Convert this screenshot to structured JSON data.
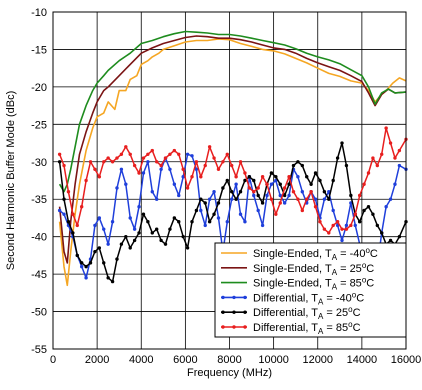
{
  "chart_data": {
    "type": "line",
    "title": "",
    "xlabel": "Frequency (MHz)",
    "ylabel": "Second Harmonic Buffer Mode (dBc)",
    "xlim": [
      0,
      16000
    ],
    "ylim": [
      -55,
      -10
    ],
    "xticks": [
      0,
      2000,
      4000,
      6000,
      8000,
      10000,
      12000,
      14000,
      16000
    ],
    "yticks": [
      -10,
      -15,
      -20,
      -25,
      -30,
      -35,
      -40,
      -45,
      -50,
      -55
    ],
    "grid": true,
    "legend_position": "bottom-right",
    "series": [
      {
        "name": "Single-Ended, TA = -40°C",
        "legend": {
          "prefix": "Single-Ended, T",
          "sub": "A",
          "mid": " = -40",
          "sup": "o",
          "suffix": "C"
        },
        "color": "#F5A623",
        "markers": false,
        "x": [
          300,
          500,
          650,
          800,
          1000,
          1200,
          1500,
          1800,
          2000,
          2300,
          2500,
          2800,
          3000,
          3300,
          3500,
          3800,
          4000,
          4300,
          4500,
          4800,
          5000,
          5500,
          6000,
          6500,
          7000,
          7500,
          8000,
          8500,
          9000,
          9500,
          10000,
          10500,
          11000,
          11500,
          12000,
          12500,
          13000,
          13500,
          14000,
          14300,
          14600,
          14900,
          15100,
          15400,
          15700,
          16000
        ],
        "y": [
          -38,
          -44,
          -46.5,
          -42,
          -37,
          -33,
          -28.5,
          -25.5,
          -24,
          -23.5,
          -22,
          -23,
          -20.5,
          -20.5,
          -19,
          -18.5,
          -17,
          -16.5,
          -16,
          -15.5,
          -15,
          -14.5,
          -14,
          -13.8,
          -13.8,
          -13.6,
          -13.7,
          -14.2,
          -14.6,
          -15,
          -15.2,
          -15.6,
          -16.2,
          -16.8,
          -17.5,
          -18.2,
          -18.6,
          -19.2,
          -19.5,
          -20.5,
          -22,
          -21,
          -20.5,
          -19.5,
          -18.8,
          -19.2
        ]
      },
      {
        "name": "Single-Ended, TA = 25°C",
        "legend": {
          "prefix": "Single-Ended, T",
          "sub": "A",
          "mid": " = 25",
          "sup": "o",
          "suffix": "C"
        },
        "color": "#7B1414",
        "markers": false,
        "x": [
          300,
          500,
          650,
          800,
          1000,
          1200,
          1500,
          1800,
          2000,
          2300,
          2500,
          3000,
          3500,
          4000,
          4500,
          5000,
          5500,
          6000,
          6500,
          7000,
          7500,
          8000,
          8500,
          9000,
          9500,
          10000,
          10500,
          11000,
          11500,
          12000,
          12500,
          13000,
          13500,
          14000,
          14300,
          14600,
          14900,
          15200,
          15500,
          16000
        ],
        "y": [
          -36,
          -42,
          -43.5,
          -38,
          -33,
          -29,
          -26,
          -23.5,
          -22,
          -20.5,
          -20,
          -18.5,
          -17,
          -15.5,
          -14.8,
          -14.2,
          -13.8,
          -13.4,
          -13.2,
          -13.3,
          -13.5,
          -13.5,
          -13.7,
          -14.0,
          -14.4,
          -14.8,
          -15.0,
          -15.5,
          -16.2,
          -16.8,
          -17.3,
          -17.8,
          -18.5,
          -19.3,
          -20.8,
          -22.5,
          -21.0,
          -20.3,
          -20.8,
          -20.7
        ]
      },
      {
        "name": "Single-Ended, TA = 85°C",
        "legend": {
          "prefix": "Single-Ended, T",
          "sub": "A",
          "mid": " = 85",
          "sup": "o",
          "suffix": "C"
        },
        "color": "#1E8C1E",
        "markers": false,
        "x": [
          300,
          500,
          650,
          800,
          1000,
          1200,
          1500,
          1800,
          2000,
          2300,
          2500,
          3000,
          3500,
          4000,
          4500,
          5000,
          5500,
          6000,
          6500,
          7000,
          7500,
          8000,
          8500,
          9000,
          9500,
          10000,
          10500,
          11000,
          11500,
          12000,
          12500,
          13000,
          13500,
          14000,
          14300,
          14600,
          14900,
          15200,
          15500,
          16000
        ],
        "y": [
          -33,
          -34,
          -33,
          -31,
          -28,
          -25,
          -22.5,
          -20.5,
          -19.5,
          -18.5,
          -17.8,
          -16.5,
          -15.5,
          -14.2,
          -13.8,
          -13.3,
          -12.9,
          -12.6,
          -12.7,
          -12.8,
          -13.0,
          -13.0,
          -13.2,
          -13.5,
          -13.8,
          -14.1,
          -14.4,
          -14.9,
          -15.5,
          -16.0,
          -16.4,
          -16.9,
          -17.7,
          -18.5,
          -20.0,
          -22.3,
          -20.8,
          -20.3,
          -20.8,
          -20.7
        ]
      },
      {
        "name": "Differential, TA = -40°C",
        "legend": {
          "prefix": "Differential, T",
          "sub": "A",
          "mid": " = -40",
          "sup": "o",
          "suffix": "C"
        },
        "color": "#1F3FDB",
        "markers": true,
        "x": [
          300,
          500,
          700,
          900,
          1100,
          1300,
          1500,
          1700,
          1900,
          2100,
          2300,
          2500,
          2700,
          2900,
          3100,
          3300,
          3500,
          3700,
          3900,
          4100,
          4300,
          4500,
          4700,
          4900,
          5100,
          5300,
          5500,
          5700,
          5900,
          6100,
          6300,
          6500,
          6700,
          6900,
          7100,
          7300,
          7500,
          7700,
          7900,
          8100,
          8300,
          8500,
          8700,
          8900,
          9100,
          9300,
          9500,
          9700,
          9900,
          10100,
          10300,
          10500,
          10700,
          10900,
          11100,
          11300,
          11500,
          11700,
          11900,
          12100,
          12300,
          12500,
          12700,
          12900,
          13100,
          13300,
          13500,
          13700,
          13900,
          14100,
          14300,
          14500,
          14700,
          14900,
          15100,
          15300,
          15500,
          15700,
          16000
        ],
        "y": [
          -36.5,
          -37,
          -38.5,
          -40,
          -42.5,
          -44,
          -45.5,
          -43,
          -38.5,
          -37.5,
          -39,
          -41,
          -38,
          -33.5,
          -31,
          -33,
          -37.5,
          -39,
          -36,
          -31.5,
          -30,
          -34,
          -35,
          -31,
          -29.5,
          -31,
          -33,
          -34.5,
          -32,
          -29,
          -29.2,
          -31,
          -36.5,
          -38.5,
          -35,
          -34,
          -37.5,
          -42,
          -38,
          -35,
          -33,
          -37,
          -38,
          -32,
          -34.5,
          -36.5,
          -38.5,
          -34.5,
          -33,
          -32.5,
          -34.5,
          -35.5,
          -34.5,
          -31,
          -32,
          -34,
          -35.5,
          -34,
          -35,
          -37.5,
          -35,
          -34,
          -36.5,
          -38.5,
          -40.5,
          -38.5,
          -35.5,
          -38.5,
          -41,
          -43,
          -44.5,
          -46.5,
          -44,
          -39.5,
          -36,
          -35,
          -33,
          -30.5,
          -31
        ]
      },
      {
        "name": "Differential, TA = 25°C",
        "legend": {
          "prefix": "Differential, T",
          "sub": "A",
          "mid": " = 25",
          "sup": "o",
          "suffix": "C"
        },
        "color": "#000000",
        "markers": true,
        "x": [
          300,
          500,
          700,
          900,
          1100,
          1300,
          1500,
          1700,
          1900,
          2100,
          2300,
          2500,
          2700,
          2900,
          3100,
          3300,
          3500,
          3700,
          3900,
          4100,
          4300,
          4500,
          4700,
          4900,
          5100,
          5300,
          5500,
          5700,
          5900,
          6100,
          6300,
          6500,
          6700,
          6900,
          7100,
          7300,
          7500,
          7700,
          7900,
          8100,
          8300,
          8500,
          8700,
          8900,
          9100,
          9300,
          9500,
          9700,
          9900,
          10100,
          10300,
          10500,
          10700,
          10900,
          11100,
          11300,
          11500,
          11700,
          11900,
          12100,
          12300,
          12500,
          12700,
          12900,
          13100,
          13300,
          13500,
          13700,
          13900,
          14100,
          14300,
          14500,
          14700,
          14900,
          15100,
          15300,
          15500,
          15700,
          16000
        ],
        "y": [
          -30,
          -35,
          -38,
          -39.5,
          -42.5,
          -43.5,
          -44,
          -43.5,
          -42,
          -41.5,
          -43.5,
          -45.5,
          -46,
          -43,
          -41,
          -40,
          -41.5,
          -40.5,
          -39.5,
          -37,
          -38,
          -39.5,
          -39,
          -40.5,
          -41,
          -39,
          -37.5,
          -38,
          -40,
          -41.5,
          -38,
          -36.5,
          -35,
          -35.5,
          -38,
          -37,
          -35.5,
          -33.5,
          -32.5,
          -34,
          -35,
          -34,
          -32.5,
          -32,
          -32.5,
          -34.5,
          -35.5,
          -33,
          -31.5,
          -32,
          -33,
          -34.5,
          -33,
          -30.5,
          -30,
          -30.5,
          -32,
          -33,
          -31.5,
          -32.5,
          -34,
          -35,
          -32.5,
          -29.5,
          -27.5,
          -30.5,
          -34.5,
          -37,
          -38,
          -36.5,
          -36,
          -37,
          -38.5,
          -39.5,
          -41,
          -40.5,
          -41,
          -40,
          -38
        ]
      },
      {
        "name": "Differential, TA = 85°C",
        "legend": {
          "prefix": "Differential, T",
          "sub": "A",
          "mid": " = 85",
          "sup": "o",
          "suffix": "C"
        },
        "color": "#E81E1E",
        "markers": true,
        "x": [
          300,
          500,
          700,
          900,
          1100,
          1300,
          1500,
          1700,
          1900,
          2100,
          2300,
          2500,
          2700,
          2900,
          3100,
          3300,
          3500,
          3700,
          3900,
          4100,
          4300,
          4500,
          4700,
          4900,
          5100,
          5300,
          5500,
          5700,
          5900,
          6100,
          6300,
          6500,
          6700,
          6900,
          7100,
          7300,
          7500,
          7700,
          7900,
          8100,
          8300,
          8500,
          8700,
          8900,
          9100,
          9300,
          9500,
          9700,
          9900,
          10100,
          10300,
          10500,
          10700,
          10900,
          11100,
          11300,
          11500,
          11700,
          11900,
          12100,
          12300,
          12500,
          12700,
          12900,
          13100,
          13300,
          13500,
          13700,
          13900,
          14100,
          14300,
          14500,
          14700,
          14900,
          15100,
          15300,
          15500,
          15700,
          16000
        ],
        "y": [
          -29,
          -30.5,
          -34,
          -37,
          -38.5,
          -36,
          -32.5,
          -30,
          -31,
          -32,
          -30,
          -29.5,
          -30,
          -29.5,
          -29,
          -28,
          -29,
          -30.5,
          -31.5,
          -29.5,
          -29,
          -28.5,
          -30,
          -30.5,
          -29.5,
          -29,
          -28.5,
          -29,
          -31,
          -33.5,
          -32,
          -30,
          -32,
          -30.5,
          -28,
          -29.5,
          -31,
          -30,
          -29,
          -30.5,
          -32,
          -30,
          -31.5,
          -33.5,
          -34,
          -33.5,
          -32,
          -33,
          -35,
          -37,
          -35.5,
          -33.5,
          -32,
          -34,
          -35,
          -36.5,
          -35,
          -34,
          -36,
          -38,
          -39,
          -39.5,
          -38.5,
          -38,
          -39,
          -39,
          -38.5,
          -37,
          -34.5,
          -33,
          -31.5,
          -29.5,
          -30.5,
          -29,
          -25.5,
          -27.5,
          -29.5,
          -28.5,
          -27
        ]
      }
    ]
  }
}
